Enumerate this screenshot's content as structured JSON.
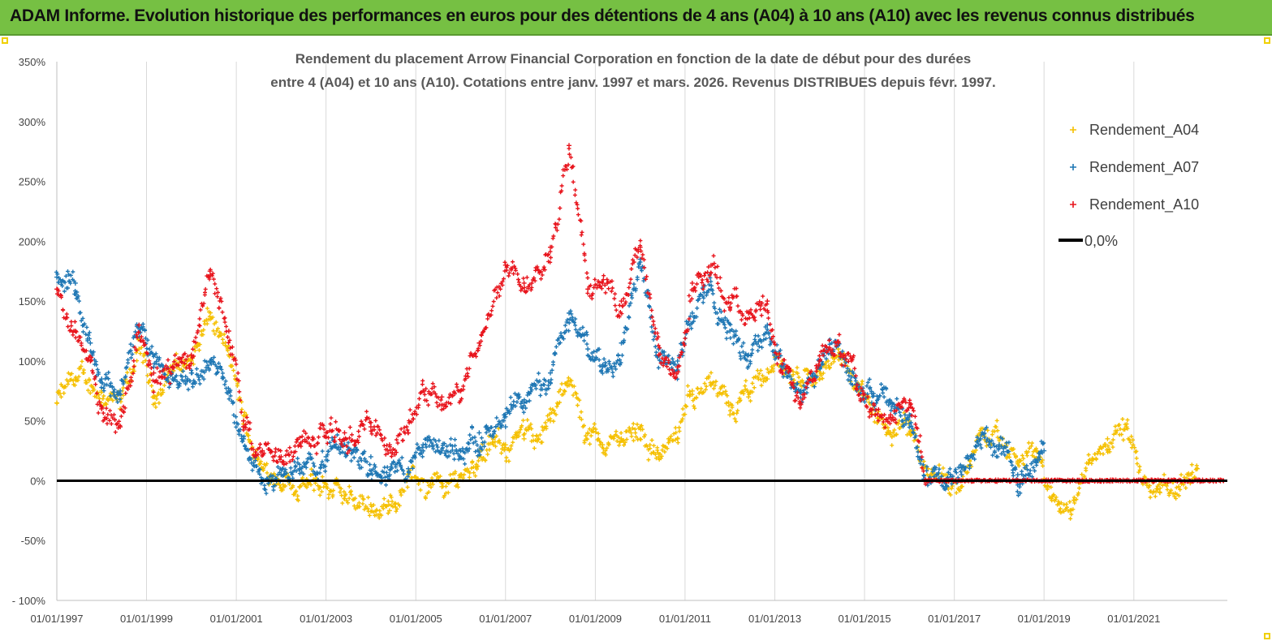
{
  "header": {
    "title": "ADAM Informe. Evolution historique des performances en euros pour des détentions de 4 ans (A04) à 10 ans (A10) avec les revenus connus distribués"
  },
  "chart_data": {
    "type": "scatter",
    "title_lines": [
      "Rendement du placement Arrow Financial Corporation en fonction de la date de début pour des durées",
      "entre 4 (A04) et 10 ans (A10).  Cotations entre janv. 1997 et mars. 2026. Revenus DISTRIBUES depuis févr. 1997."
    ],
    "xlabel": "",
    "ylabel": "",
    "x_range": [
      "1997-01-01",
      "2023-02-01"
    ],
    "x_ticks": [
      "01/01/1997",
      "01/01/1999",
      "01/01/2001",
      "01/01/2003",
      "01/01/2005",
      "01/01/2007",
      "01/01/2009",
      "01/01/2011",
      "01/01/2013",
      "01/01/2015",
      "01/01/2017",
      "01/01/2019",
      "01/01/2021"
    ],
    "y_range": [
      -100,
      350
    ],
    "y_ticks": [
      "- 100%",
      "-50%",
      "0%",
      "50%",
      "100%",
      "150%",
      "200%",
      "250%",
      "300%",
      "350%"
    ],
    "grid": "vertical",
    "legend_position": "top-right",
    "zero_line": {
      "name": "0,0%",
      "value": 0,
      "color": "#000000"
    },
    "series": [
      {
        "name": "Rendement_A04",
        "color": "#f5c000",
        "points": [
          [
            "1997-01-01",
            65
          ],
          [
            "1997-06-01",
            85
          ],
          [
            "1998-01-01",
            75
          ],
          [
            "1998-06-01",
            60
          ],
          [
            "1998-11-01",
            110
          ],
          [
            "1999-03-01",
            70
          ],
          [
            "1999-08-01",
            95
          ],
          [
            "2000-01-01",
            100
          ],
          [
            "2000-06-01",
            135
          ],
          [
            "2000-11-01",
            105
          ],
          [
            "2001-03-01",
            50
          ],
          [
            "2001-08-01",
            10
          ],
          [
            "2002-01-01",
            5
          ],
          [
            "2002-06-01",
            -5
          ],
          [
            "2003-01-01",
            -5
          ],
          [
            "2003-06-01",
            -15
          ],
          [
            "2004-01-01",
            -20
          ],
          [
            "2004-06-01",
            -25
          ],
          [
            "2004-11-01",
            5
          ],
          [
            "2005-03-01",
            0
          ],
          [
            "2005-08-01",
            -5
          ],
          [
            "2006-01-01",
            5
          ],
          [
            "2006-06-01",
            20
          ],
          [
            "2007-01-01",
            30
          ],
          [
            "2007-06-01",
            35
          ],
          [
            "2008-01-01",
            50
          ],
          [
            "2008-06-01",
            80
          ],
          [
            "2008-11-01",
            40
          ],
          [
            "2009-03-01",
            30
          ],
          [
            "2009-08-01",
            35
          ],
          [
            "2010-01-01",
            45
          ],
          [
            "2010-06-01",
            20
          ],
          [
            "2010-11-01",
            35
          ],
          [
            "2011-03-01",
            75
          ],
          [
            "2011-08-01",
            80
          ],
          [
            "2012-01-01",
            55
          ],
          [
            "2012-06-01",
            70
          ],
          [
            "2012-11-01",
            85
          ],
          [
            "2013-03-01",
            100
          ],
          [
            "2013-08-01",
            75
          ],
          [
            "2014-01-01",
            85
          ],
          [
            "2014-06-01",
            110
          ],
          [
            "2014-11-01",
            80
          ],
          [
            "2015-03-01",
            55
          ],
          [
            "2015-08-01",
            40
          ],
          [
            "2016-01-01",
            50
          ],
          [
            "2016-06-01",
            10
          ],
          [
            "2016-11-01",
            5
          ],
          [
            "2017-03-01",
            -5
          ],
          [
            "2017-08-01",
            40
          ],
          [
            "2018-01-01",
            30
          ],
          [
            "2018-06-01",
            15
          ],
          [
            "2018-11-01",
            25
          ],
          [
            "2019-03-01",
            -15
          ],
          [
            "2019-08-01",
            -25
          ],
          [
            "2020-01-01",
            15
          ],
          [
            "2020-06-01",
            35
          ],
          [
            "2020-11-01",
            45
          ],
          [
            "2021-03-01",
            0
          ],
          [
            "2021-08-01",
            -10
          ],
          [
            "2022-01-01",
            -5
          ],
          [
            "2022-06-01",
            10
          ]
        ]
      },
      {
        "name": "Rendement_A07",
        "color": "#1f77b4",
        "points": [
          [
            "1997-01-01",
            170
          ],
          [
            "1997-06-01",
            165
          ],
          [
            "1997-10-01",
            115
          ],
          [
            "1998-01-01",
            85
          ],
          [
            "1998-06-01",
            75
          ],
          [
            "1998-11-01",
            130
          ],
          [
            "1999-03-01",
            95
          ],
          [
            "1999-08-01",
            85
          ],
          [
            "2000-01-01",
            90
          ],
          [
            "2000-06-01",
            100
          ],
          [
            "2000-11-01",
            75
          ],
          [
            "2001-03-01",
            35
          ],
          [
            "2001-08-01",
            0
          ],
          [
            "2002-01-01",
            5
          ],
          [
            "2002-06-01",
            10
          ],
          [
            "2003-01-01",
            20
          ],
          [
            "2003-06-01",
            30
          ],
          [
            "2004-01-01",
            20
          ],
          [
            "2004-06-01",
            5
          ],
          [
            "2004-11-01",
            10
          ],
          [
            "2005-03-01",
            30
          ],
          [
            "2005-08-01",
            25
          ],
          [
            "2006-01-01",
            25
          ],
          [
            "2006-06-01",
            40
          ],
          [
            "2007-01-01",
            45
          ],
          [
            "2007-06-01",
            65
          ],
          [
            "2008-01-01",
            90
          ],
          [
            "2008-06-01",
            140
          ],
          [
            "2008-11-01",
            110
          ],
          [
            "2009-03-01",
            95
          ],
          [
            "2009-08-01",
            115
          ],
          [
            "2010-01-01",
            185
          ],
          [
            "2010-06-01",
            110
          ],
          [
            "2010-11-01",
            100
          ],
          [
            "2011-03-01",
            140
          ],
          [
            "2011-08-01",
            160
          ],
          [
            "2012-01-01",
            125
          ],
          [
            "2012-06-01",
            105
          ],
          [
            "2012-11-01",
            130
          ],
          [
            "2013-03-01",
            95
          ],
          [
            "2013-08-01",
            75
          ],
          [
            "2014-01-01",
            95
          ],
          [
            "2014-06-01",
            115
          ],
          [
            "2014-11-01",
            80
          ],
          [
            "2015-03-01",
            65
          ],
          [
            "2015-08-01",
            65
          ],
          [
            "2016-01-01",
            55
          ],
          [
            "2016-06-01",
            0
          ],
          [
            "2016-11-01",
            -5
          ],
          [
            "2017-03-01",
            5
          ],
          [
            "2017-08-01",
            35
          ],
          [
            "2018-01-01",
            30
          ],
          [
            "2018-06-01",
            5
          ],
          [
            "2018-11-01",
            15
          ],
          [
            "2019-01-01",
            25
          ]
        ]
      },
      {
        "name": "Rendement_A10",
        "color": "#e8141c",
        "points": [
          [
            "1997-01-01",
            160
          ],
          [
            "1997-06-01",
            125
          ],
          [
            "1997-10-01",
            100
          ],
          [
            "1998-01-01",
            60
          ],
          [
            "1998-06-01",
            45
          ],
          [
            "1998-11-01",
            130
          ],
          [
            "1999-03-01",
            90
          ],
          [
            "1999-08-01",
            95
          ],
          [
            "2000-01-01",
            105
          ],
          [
            "2000-06-01",
            175
          ],
          [
            "2000-11-01",
            125
          ],
          [
            "2001-03-01",
            50
          ],
          [
            "2001-08-01",
            25
          ],
          [
            "2002-01-01",
            20
          ],
          [
            "2002-06-01",
            30
          ],
          [
            "2003-01-01",
            40
          ],
          [
            "2003-06-01",
            40
          ],
          [
            "2004-01-01",
            45
          ],
          [
            "2004-06-01",
            30
          ],
          [
            "2004-11-01",
            40
          ],
          [
            "2005-03-01",
            75
          ],
          [
            "2005-08-01",
            70
          ],
          [
            "2006-01-01",
            75
          ],
          [
            "2006-06-01",
            115
          ],
          [
            "2007-01-01",
            180
          ],
          [
            "2007-06-01",
            165
          ],
          [
            "2008-01-01",
            195
          ],
          [
            "2008-06-01",
            280
          ],
          [
            "2008-11-01",
            160
          ],
          [
            "2009-03-01",
            165
          ],
          [
            "2009-08-01",
            150
          ],
          [
            "2010-01-01",
            195
          ],
          [
            "2010-06-01",
            105
          ],
          [
            "2010-11-01",
            95
          ],
          [
            "2011-03-01",
            165
          ],
          [
            "2011-08-01",
            180
          ],
          [
            "2012-01-01",
            145
          ],
          [
            "2012-06-01",
            140
          ],
          [
            "2012-11-01",
            150
          ],
          [
            "2013-03-01",
            90
          ],
          [
            "2013-08-01",
            65
          ],
          [
            "2014-01-01",
            100
          ],
          [
            "2014-06-01",
            115
          ],
          [
            "2014-11-01",
            80
          ],
          [
            "2015-03-01",
            55
          ],
          [
            "2015-08-01",
            55
          ],
          [
            "2016-01-01",
            65
          ],
          [
            "2016-06-01",
            0
          ],
          [
            "2017-06-01",
            0
          ],
          [
            "2018-06-01",
            0
          ],
          [
            "2019-06-01",
            0
          ],
          [
            "2020-06-01",
            0
          ],
          [
            "2021-06-01",
            0
          ],
          [
            "2022-06-01",
            0
          ],
          [
            "2023-01-01",
            0
          ]
        ]
      }
    ]
  }
}
